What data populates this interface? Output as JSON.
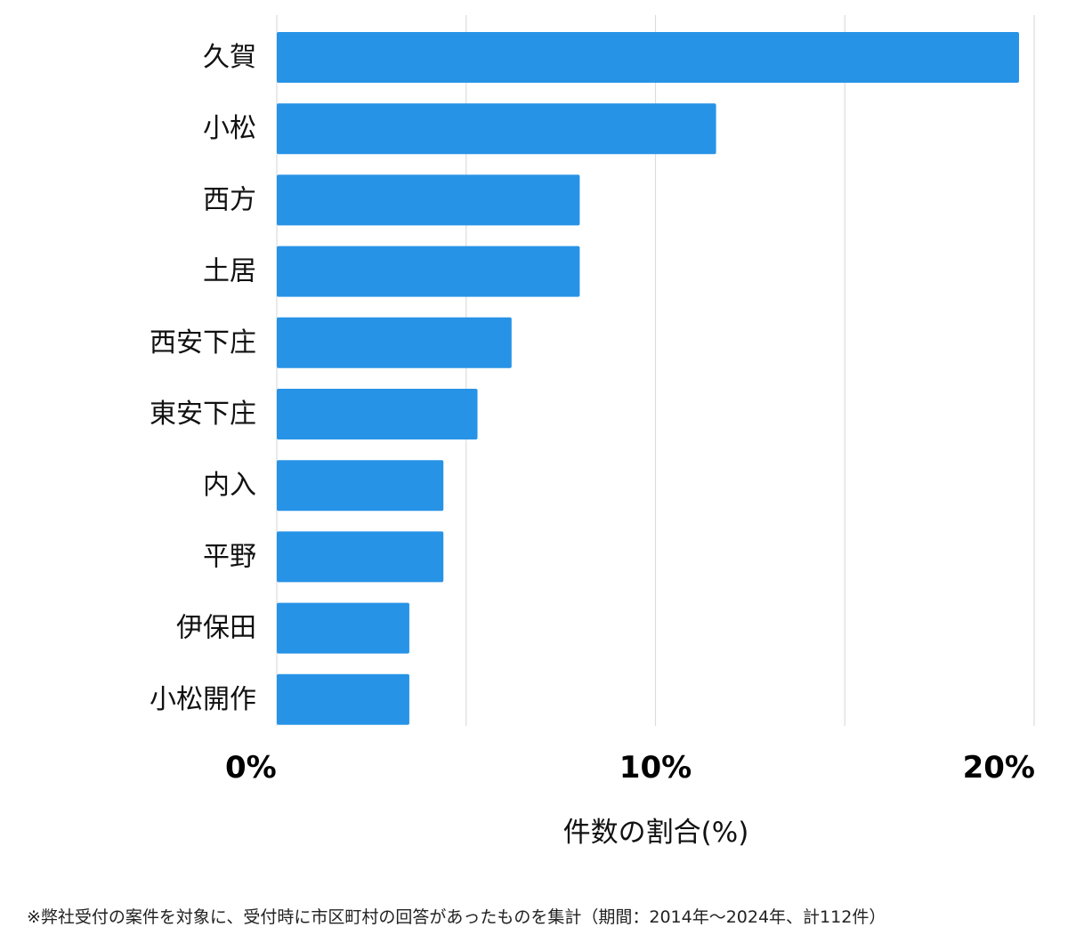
{
  "chart_data": {
    "type": "bar",
    "orientation": "horizontal",
    "categories": [
      "久賀",
      "小松",
      "西方",
      "土居",
      "西安下庄",
      "東安下庄",
      "内入",
      "平野",
      "伊保田",
      "小松開作"
    ],
    "values": [
      19.6,
      11.6,
      8.0,
      8.0,
      6.2,
      5.3,
      4.4,
      4.4,
      3.5,
      3.5
    ],
    "xlim": [
      0,
      20
    ],
    "xticks": [
      0,
      10,
      20
    ],
    "tick_labels": [
      "0%",
      "10%",
      "20%"
    ],
    "gridlines": [
      0,
      5,
      10,
      15,
      20
    ],
    "xlabel": "件数の割合(%)",
    "grid": true,
    "bar_color": "#2793e6",
    "grid_color": "#dddddd"
  },
  "footnote": "※弊社受付の案件を対象に、受付時に市区町村の回答があったものを集計（期間：2014年～2024年、計112件）"
}
